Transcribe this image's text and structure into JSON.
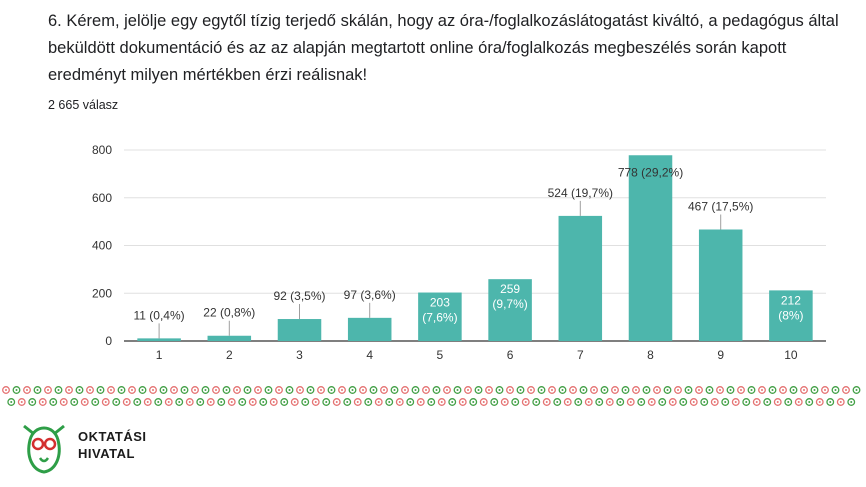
{
  "question": {
    "text": "6. Kérem, jelölje egy egytől tízig terjedő skálán, hogy az óra-/foglalkozáslátogatást kiváltó, a pedagógus által beküldött dokumentáció és az az alapján megtartott online óra/foglalkozás megbeszélés során kapott eredményt milyen mértékben érzi reálisnak!",
    "response_count": "2 665 válasz"
  },
  "chart_data": {
    "type": "bar",
    "categories": [
      "1",
      "2",
      "3",
      "4",
      "5",
      "6",
      "7",
      "8",
      "9",
      "10"
    ],
    "values": [
      11,
      22,
      92,
      97,
      203,
      259,
      524,
      778,
      467,
      212
    ],
    "labels": [
      [
        "11 (0,4%)"
      ],
      [
        "22 (0,8%)"
      ],
      [
        "92 (3,5%)"
      ],
      [
        "97 (3,6%)"
      ],
      [
        "203",
        "(7,6%)"
      ],
      [
        "259",
        "(9,7%)"
      ],
      [
        "524 (19,7%)"
      ],
      [
        "778 (29,2%)"
      ],
      [
        "467 (17,5%)"
      ],
      [
        "212",
        "(8%)"
      ]
    ],
    "label_inside": [
      false,
      false,
      false,
      false,
      true,
      true,
      false,
      false,
      false,
      true
    ],
    "yticks": [
      0,
      200,
      400,
      600,
      800
    ],
    "ylim": [
      0,
      800
    ],
    "grid": true,
    "bar_color": "#4db6ac"
  },
  "logo": {
    "line1": "OKTATÁSI",
    "line2": "HIVATAL",
    "green": "#2e9e47",
    "red": "#d32f2f"
  },
  "ornament": {
    "red": "#e57373",
    "green": "#43a047"
  }
}
